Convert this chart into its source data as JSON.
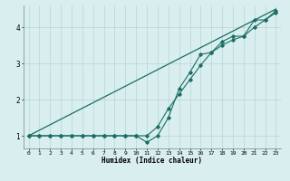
{
  "xlabel": "Humidex (Indice chaleur)",
  "bg_color": "#d9eeee",
  "grid_color": "#b8d4d4",
  "line_color": "#1a6e64",
  "xlim": [
    -0.5,
    23.5
  ],
  "ylim": [
    0.65,
    4.6
  ],
  "xticks": [
    0,
    1,
    2,
    3,
    4,
    5,
    6,
    7,
    8,
    9,
    10,
    11,
    12,
    13,
    14,
    15,
    16,
    17,
    18,
    19,
    20,
    21,
    22,
    23
  ],
  "yticks": [
    1,
    2,
    3,
    4
  ],
  "line1_x": [
    0,
    1,
    2,
    3,
    4,
    5,
    6,
    7,
    8,
    9,
    10,
    11,
    12,
    13,
    14,
    15,
    16,
    17,
    18,
    19,
    20,
    21,
    22,
    23
  ],
  "line1_y": [
    1.0,
    1.0,
    1.0,
    1.0,
    1.0,
    1.0,
    1.0,
    1.0,
    1.0,
    1.0,
    1.0,
    0.82,
    1.0,
    1.5,
    2.3,
    2.75,
    3.25,
    3.3,
    3.6,
    3.75,
    3.75,
    4.2,
    4.2,
    4.4
  ],
  "line2_x": [
    0,
    1,
    2,
    3,
    4,
    5,
    6,
    7,
    8,
    9,
    10,
    11,
    12,
    13,
    14,
    15,
    16,
    17,
    18,
    19,
    20,
    21,
    22,
    23
  ],
  "line2_y": [
    1.0,
    1.0,
    1.0,
    1.0,
    1.0,
    1.0,
    1.0,
    1.0,
    1.0,
    1.0,
    1.0,
    1.0,
    1.25,
    1.75,
    2.15,
    2.55,
    2.95,
    3.3,
    3.5,
    3.65,
    3.75,
    4.0,
    4.2,
    4.45
  ],
  "line3_x": [
    0,
    23
  ],
  "line3_y": [
    1.0,
    4.5
  ]
}
